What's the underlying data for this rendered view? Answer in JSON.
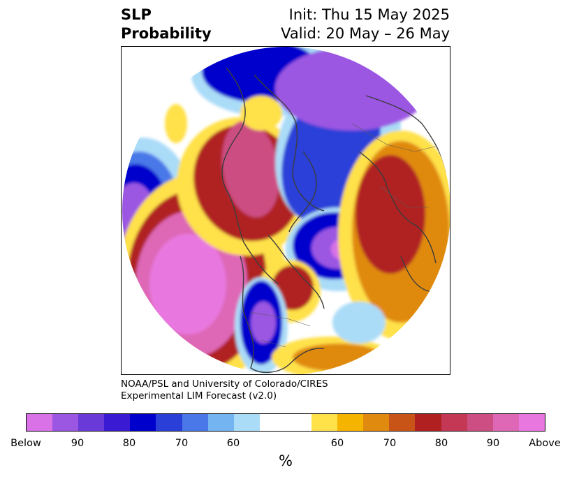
{
  "header": {
    "title_line1": "SLP",
    "title_line2": "Probability",
    "init": "Init: Thu 15 May 2025",
    "valid": "Valid: 20 May – 26 May"
  },
  "credit": {
    "line1": "NOAA/PSL and University of Colorado/CIRES",
    "line2": "Experimental LIM Forecast (v2.0)"
  },
  "colorbar": {
    "unit": "%",
    "colors": [
      "#d872e6",
      "#9b56e2",
      "#6a3ad8",
      "#3a1ad2",
      "#0000cc",
      "#2a3fd8",
      "#4a78e8",
      "#74b4f0",
      "#aadcf8",
      "#ffffff",
      "#ffffff",
      "#ffe14a",
      "#f4b400",
      "#e08a10",
      "#c85418",
      "#b02020",
      "#c43856",
      "#cc4e82",
      "#de68b6",
      "#e878e0"
    ],
    "ticks": [
      "Below",
      "90",
      "80",
      "70",
      "60",
      "60",
      "70",
      "80",
      "90",
      "Above"
    ]
  },
  "map": {
    "projection": "north-polar-stereographic",
    "colors": {
      "deep_below": "#0000cc",
      "below": "#4a78e8",
      "light_below": "#aadcf8",
      "violet": "#9b56e2",
      "light_above": "#ffe14a",
      "above": "#e08a10",
      "red": "#b02020",
      "pink": "#de68b6",
      "coast": "#3c3c3c"
    }
  }
}
